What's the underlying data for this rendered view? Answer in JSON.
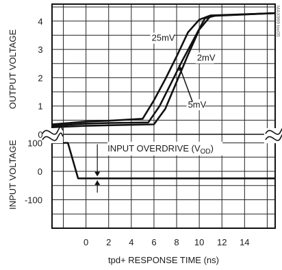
{
  "chart_data": {
    "type": "line",
    "xlabel": "tpd+ RESPONSE TIME (ns)",
    "xticks": [
      0,
      2,
      4,
      6,
      8,
      10,
      12,
      14
    ],
    "xlim": [
      -3,
      16.7
    ],
    "grid": true,
    "watermark": "MAX999 toc05",
    "panels": [
      {
        "id": "output",
        "ylabel": "OUTPUT VOLTAGE",
        "yticks": [
          0,
          1,
          2,
          3,
          4
        ],
        "ylim": [
          0,
          4.6
        ],
        "series": [
          {
            "name": "25mV",
            "x": [
              -3,
              0,
              2,
              5,
              6,
              7,
              8,
              9,
              10,
              11,
              16.7
            ],
            "y": [
              0.35,
              0.45,
              0.48,
              0.55,
              1.2,
              1.95,
              2.75,
              3.6,
              4.05,
              4.2,
              4.28
            ]
          },
          {
            "name": "2mV",
            "x": [
              -3,
              0,
              2,
              5.5,
              6.5,
              7.5,
              8.5,
              9.5,
              10.5,
              11.5,
              16.7
            ],
            "y": [
              0.3,
              0.38,
              0.4,
              0.42,
              1.0,
              1.8,
              2.6,
              3.35,
              4.1,
              4.2,
              4.28
            ]
          },
          {
            "name": "5mV",
            "x": [
              -3,
              0,
              2,
              6,
              7,
              8,
              9,
              10,
              11,
              16.7
            ],
            "y": [
              0.25,
              0.3,
              0.32,
              0.35,
              0.9,
              1.85,
              2.8,
              3.7,
              4.18,
              4.28
            ]
          }
        ],
        "labels": [
          {
            "text": "25mV",
            "x": 5.8,
            "y": 3.3
          },
          {
            "text": "2mV",
            "x": 9.8,
            "y": 2.6
          },
          {
            "text": "5mV",
            "x": 9.0,
            "y": 0.95
          }
        ]
      },
      {
        "id": "input",
        "ylabel": "INPUT VOLTAGE",
        "yticks": [
          100,
          0,
          -100
        ],
        "ylim": [
          -200,
          130
        ],
        "series": [
          {
            "name": "input",
            "x": [
              -3,
              -1.6,
              -0.7,
              16.7
            ],
            "y": [
              100,
              100,
              -25,
              -25
            ]
          }
        ],
        "annotation": {
          "text": "INPUT OVERDRIVE (V",
          "sub": "OD",
          "close": ")"
        }
      }
    ]
  }
}
